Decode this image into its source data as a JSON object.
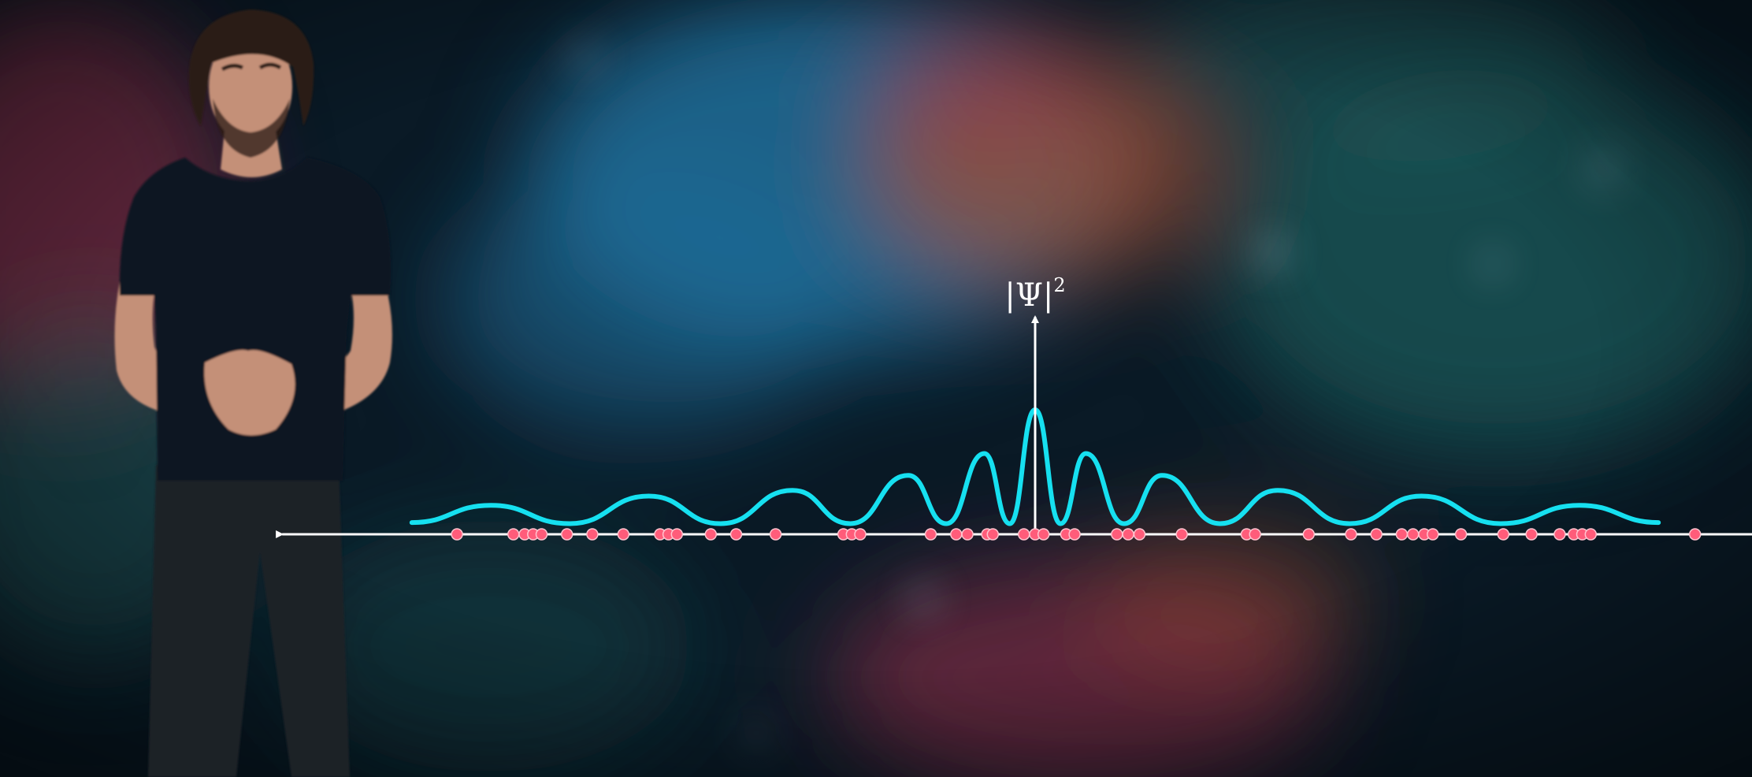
{
  "colors": {
    "background_dark": "#0a1a26",
    "nebula_blue": "#1f6f9a",
    "nebula_teal": "#1e5a5a",
    "nebula_orange": "#b0502a",
    "nebula_pink": "#a0304a",
    "wave": "#16e0f0",
    "axis": "#ffffff",
    "particle_fill": "#ff5c7a",
    "particle_stroke": "#ffc4cf",
    "shirt": "#0f1622",
    "jeans": "#1e2228",
    "skin": "#c49078",
    "hair": "#2b1c14"
  },
  "axis_label": {
    "base": "|Ψ|",
    "exponent": "2"
  },
  "chart_data": {
    "type": "line",
    "title": "",
    "xlabel": "",
    "ylabel": "|Ψ|²",
    "grid": false,
    "series": [
      {
        "kind": "interference-pattern",
        "fringe_peaks": [
          {
            "x": -19.3,
            "y": 0.17
          },
          {
            "x": -13.7,
            "y": 0.25
          },
          {
            "x": -8.6,
            "y": 0.3
          },
          {
            "x": -4.5,
            "y": 0.43
          },
          {
            "x": -1.8,
            "y": 0.62
          },
          {
            "x": 0,
            "y": 1.0
          },
          {
            "x": 1.8,
            "y": 0.62
          },
          {
            "x": 4.5,
            "y": 0.43
          },
          {
            "x": 8.6,
            "y": 0.3
          },
          {
            "x": 13.7,
            "y": 0.25
          },
          {
            "x": 19.3,
            "y": 0.17
          }
        ]
      }
    ],
    "particles_x": [
      -20.5,
      -18.5,
      -18.1,
      -17.8,
      -17.5,
      -16.6,
      -15.7,
      -14.6,
      -13.3,
      -13.0,
      -12.7,
      -11.5,
      -10.6,
      -9.2,
      -6.8,
      -6.5,
      -6.2,
      -3.7,
      -2.8,
      -2.4,
      -1.7,
      -1.5,
      -0.4,
      0.0,
      0.3,
      1.1,
      1.4,
      2.9,
      3.3,
      3.7,
      5.2,
      7.5,
      7.8,
      9.7,
      11.2,
      12.1,
      13.0,
      13.4,
      13.8,
      14.1,
      15.1,
      16.6,
      17.6,
      18.6,
      19.1,
      19.4,
      19.7,
      23.4
    ]
  }
}
